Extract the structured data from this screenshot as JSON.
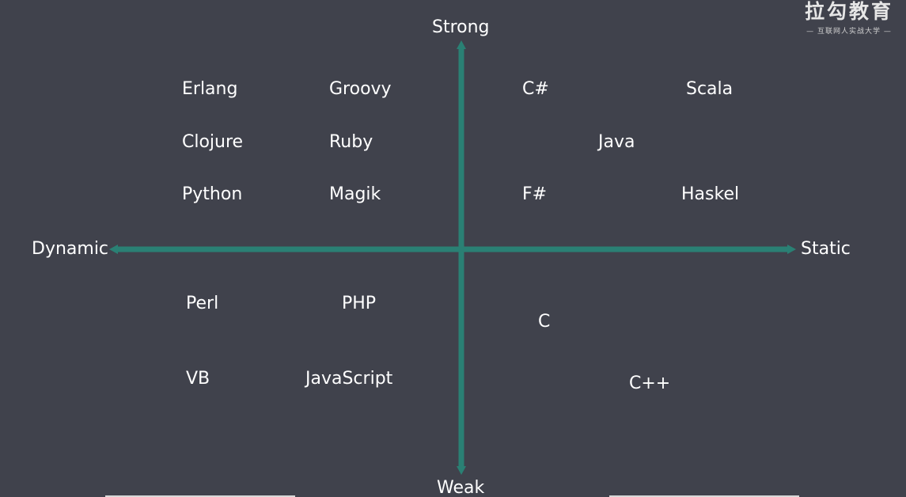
{
  "axes": {
    "top": "Strong",
    "bottom": "Weak",
    "left": "Dynamic",
    "right": "Static",
    "color": "#2a8074"
  },
  "background": "#40424c",
  "logo": {
    "title": "拉勾教育",
    "subtitle": "— 互联网人实战大学 —"
  },
  "languages": {
    "erlang": "Erlang",
    "groovy": "Groovy",
    "csharp": "C#",
    "scala": "Scala",
    "clojure": "Clojure",
    "ruby": "Ruby",
    "java": "Java",
    "python": "Python",
    "magik": "Magik",
    "fsharp": "F#",
    "haskel": "Haskel",
    "perl": "Perl",
    "php": "PHP",
    "c": "C",
    "vb": "VB",
    "javascript": "JavaScript",
    "cpp": "C++"
  }
}
